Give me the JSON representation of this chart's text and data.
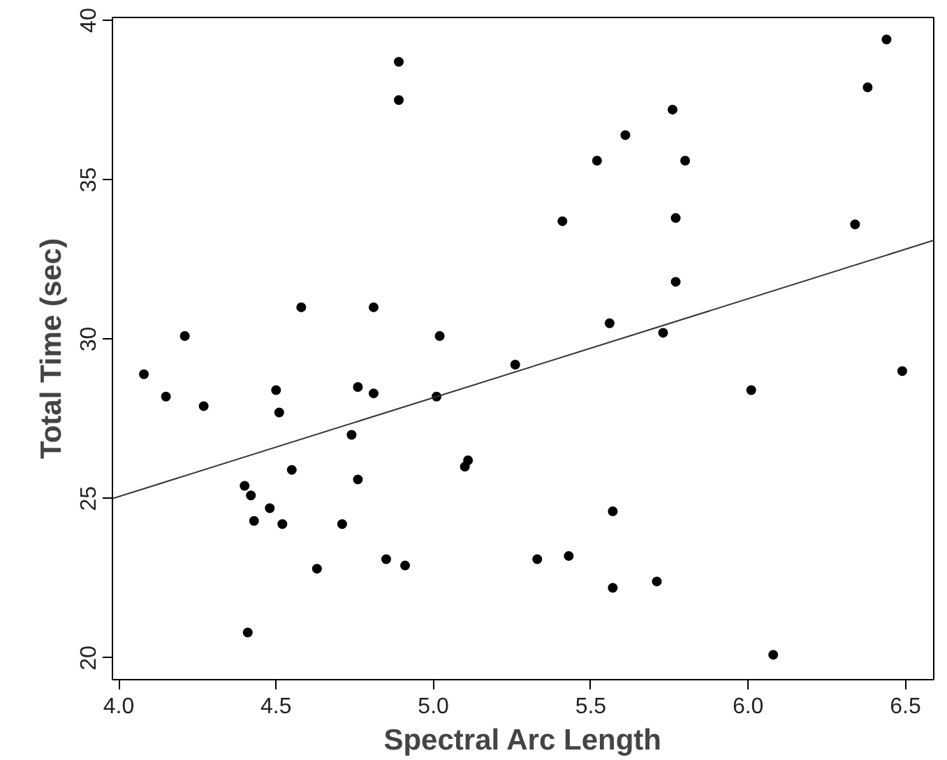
{
  "chart_data": {
    "type": "scatter",
    "xlabel": "Spectral Arc Length",
    "ylabel": "Total Time (sec)",
    "xlim": [
      3.98,
      6.59
    ],
    "ylim": [
      19.32,
      40.09
    ],
    "xticks": [
      {
        "value": 4.0,
        "label": "4.0"
      },
      {
        "value": 4.5,
        "label": "4.5"
      },
      {
        "value": 5.0,
        "label": "5.0"
      },
      {
        "value": 5.5,
        "label": "5.5"
      },
      {
        "value": 6.0,
        "label": "6.0"
      },
      {
        "value": 6.5,
        "label": "6.5"
      }
    ],
    "yticks": [
      20,
      25,
      30,
      35,
      40
    ],
    "grid": false,
    "series": [
      {
        "color": "#000000",
        "marker": "circle",
        "x": [
          4.08,
          4.15,
          4.21,
          4.27,
          4.4,
          4.42,
          4.41,
          4.43,
          4.48,
          4.5,
          4.51,
          4.52,
          4.55,
          4.58,
          4.63,
          4.71,
          4.74,
          4.76,
          4.76,
          4.81,
          4.81,
          4.85,
          4.89,
          4.89,
          4.91,
          5.01,
          5.02,
          5.1,
          5.11,
          5.26,
          5.33,
          5.41,
          5.43,
          5.52,
          5.56,
          5.57,
          5.57,
          5.61,
          5.71,
          5.73,
          5.76,
          5.77,
          5.77,
          5.8,
          6.01,
          6.08,
          6.34,
          6.38,
          6.44,
          6.49
        ],
        "values": [
          28.9,
          28.2,
          30.1,
          27.9,
          25.4,
          25.1,
          20.8,
          24.3,
          24.7,
          28.4,
          27.7,
          24.2,
          25.9,
          31.0,
          22.8,
          24.2,
          27.0,
          28.5,
          25.6,
          31.0,
          28.3,
          23.1,
          38.7,
          37.5,
          22.9,
          28.2,
          30.1,
          26.0,
          26.2,
          29.2,
          23.1,
          33.7,
          23.2,
          35.6,
          30.5,
          24.6,
          22.2,
          36.4,
          22.4,
          30.2,
          37.2,
          33.8,
          31.8,
          35.6,
          28.4,
          20.1,
          33.6,
          37.9,
          39.4,
          29.0
        ]
      },
      {
        "type": "line",
        "color": "#333333",
        "line_style": "solid",
        "x": [
          3.98,
          6.59
        ],
        "values": [
          25.0,
          33.1
        ]
      }
    ]
  }
}
